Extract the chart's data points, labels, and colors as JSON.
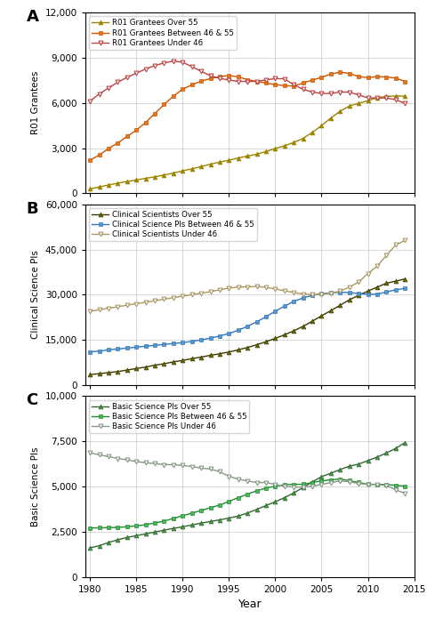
{
  "years": [
    1980,
    1981,
    1982,
    1983,
    1984,
    1985,
    1986,
    1987,
    1988,
    1989,
    1990,
    1991,
    1992,
    1993,
    1994,
    1995,
    1996,
    1997,
    1998,
    1999,
    2000,
    2001,
    2002,
    2003,
    2004,
    2005,
    2006,
    2007,
    2008,
    2009,
    2010,
    2011,
    2012,
    2013,
    2014
  ],
  "A_over55": [
    300,
    430,
    560,
    680,
    790,
    890,
    1000,
    1100,
    1220,
    1350,
    1500,
    1630,
    1780,
    1940,
    2080,
    2200,
    2350,
    2480,
    2600,
    2780,
    2980,
    3160,
    3380,
    3650,
    4050,
    4500,
    5000,
    5450,
    5800,
    5980,
    6150,
    6350,
    6430,
    6470,
    6450
  ],
  "A_46to55": [
    2200,
    2550,
    2980,
    3350,
    3780,
    4200,
    4700,
    5300,
    5900,
    6450,
    6920,
    7200,
    7450,
    7620,
    7750,
    7820,
    7730,
    7550,
    7430,
    7320,
    7220,
    7150,
    7120,
    7320,
    7520,
    7700,
    7920,
    8050,
    7960,
    7750,
    7680,
    7750,
    7720,
    7650,
    7430
  ],
  "A_under46": [
    6130,
    6600,
    7000,
    7380,
    7700,
    7980,
    8250,
    8480,
    8660,
    8780,
    8700,
    8410,
    8100,
    7810,
    7630,
    7520,
    7430,
    7430,
    7430,
    7530,
    7620,
    7600,
    7200,
    6910,
    6720,
    6630,
    6630,
    6720,
    6720,
    6530,
    6340,
    6330,
    6330,
    6220,
    5970
  ],
  "B_over55": [
    3500,
    3800,
    4150,
    4500,
    5000,
    5500,
    6000,
    6600,
    7100,
    7700,
    8200,
    8800,
    9300,
    9900,
    10400,
    11000,
    11700,
    12500,
    13400,
    14400,
    15500,
    16700,
    18000,
    19500,
    21200,
    23000,
    24700,
    26500,
    28300,
    29800,
    31200,
    32500,
    33800,
    34500,
    35200
  ],
  "B_46to55": [
    11000,
    11300,
    11700,
    12000,
    12300,
    12600,
    12900,
    13200,
    13500,
    13800,
    14100,
    14500,
    15000,
    15600,
    16300,
    17100,
    18200,
    19500,
    21000,
    22700,
    24500,
    26200,
    27800,
    28900,
    29800,
    30300,
    30600,
    30800,
    30700,
    30400,
    30100,
    30200,
    30900,
    31600,
    32100
  ],
  "B_under46": [
    24500,
    25000,
    25500,
    26000,
    26500,
    27000,
    27500,
    28000,
    28500,
    29000,
    29500,
    30000,
    30500,
    31000,
    31600,
    32200,
    32500,
    32600,
    32700,
    32400,
    31900,
    31300,
    30700,
    30200,
    30000,
    30100,
    30500,
    31200,
    32500,
    34200,
    37000,
    39500,
    43000,
    46500,
    48000
  ],
  "C_over55": [
    1600,
    1720,
    1900,
    2050,
    2180,
    2280,
    2380,
    2480,
    2580,
    2680,
    2770,
    2870,
    2970,
    3060,
    3150,
    3250,
    3360,
    3530,
    3730,
    3940,
    4150,
    4380,
    4640,
    4940,
    5250,
    5540,
    5730,
    5930,
    6120,
    6230,
    6430,
    6620,
    6850,
    7100,
    7420
  ],
  "C_46to55": [
    2700,
    2710,
    2720,
    2730,
    2770,
    2820,
    2880,
    2980,
    3080,
    3230,
    3380,
    3520,
    3670,
    3820,
    3970,
    4170,
    4380,
    4570,
    4760,
    4910,
    5010,
    5100,
    5110,
    5120,
    5210,
    5310,
    5360,
    5410,
    5320,
    5220,
    5120,
    5110,
    5110,
    5060,
    5010
  ],
  "C_under46": [
    6850,
    6750,
    6650,
    6540,
    6470,
    6370,
    6310,
    6260,
    6200,
    6200,
    6160,
    6100,
    6010,
    5960,
    5810,
    5560,
    5400,
    5300,
    5210,
    5210,
    5110,
    5010,
    4960,
    4960,
    5010,
    5110,
    5210,
    5310,
    5260,
    5160,
    5110,
    5100,
    5060,
    4810,
    4620
  ],
  "col_A_over55_line": "#9C8400",
  "col_A_over55_face": "#9C8400",
  "col_A_46to55_line": "#CC5500",
  "col_A_46to55_face": "#E07820",
  "col_A_under46_line": "#BB4444",
  "col_A_under46_face": "white",
  "col_B_over55_line": "#3A3A00",
  "col_B_over55_face": "#6B6B00",
  "col_B_46to55_line": "#3377BB",
  "col_B_46to55_face": "#5599CC",
  "col_B_under46_line": "#AA9966",
  "col_B_under46_face": "white",
  "col_C_over55_line": "#336633",
  "col_C_over55_face": "#449944",
  "col_C_46to55_line": "#228833",
  "col_C_46to55_face": "#44BB55",
  "col_C_under46_line": "#889988",
  "col_C_under46_face": "white",
  "panel_labels": [
    "A",
    "B",
    "C"
  ],
  "A_ylabel": "R01 Grantees",
  "B_ylabel": "Clinical Science PIs",
  "C_ylabel": "Basic Science PIs",
  "xlabel": "Year",
  "A_ylim": [
    0,
    12000
  ],
  "B_ylim": [
    0,
    60000
  ],
  "C_ylim": [
    0,
    10000
  ],
  "A_yticks": [
    0,
    3000,
    6000,
    9000,
    12000
  ],
  "B_yticks": [
    0,
    15000,
    30000,
    45000,
    60000
  ],
  "C_yticks": [
    0,
    2500,
    5000,
    7500,
    10000
  ],
  "xticks": [
    1980,
    1985,
    1990,
    1995,
    2000,
    2005,
    2010,
    2015
  ],
  "A_legend": [
    "R01 Grantees Over 55",
    "R01 Grantees Between 46 & 55",
    "R01 Grantees Under 46"
  ],
  "B_legend": [
    "Clinical Scientists Over 55",
    "Clinical Science PIs Between 46 & 55",
    "Clinical Scientists Under 46"
  ],
  "C_legend": [
    "Basic Science PIs Over 55",
    "Basic Science PIs Between 46 & 55",
    "Basic Science PIs Under 46"
  ]
}
